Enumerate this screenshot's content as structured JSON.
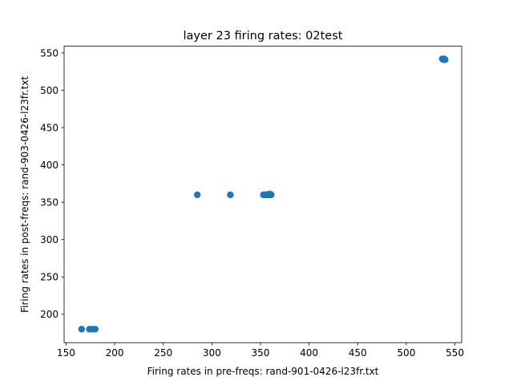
{
  "chart_data": {
    "type": "scatter",
    "title": "layer 23 firing rates: 02test",
    "xlabel": "Firing rates in pre-freqs: rand-901-0426-l23fr.txt",
    "ylabel": "Firing rates in post-freqs: rand-903-0426-l23fr.txt",
    "xlim": [
      148,
      557
    ],
    "ylim": [
      162,
      559
    ],
    "xticks": [
      150,
      200,
      250,
      300,
      350,
      400,
      450,
      500,
      550
    ],
    "yticks": [
      200,
      250,
      300,
      350,
      400,
      450,
      500,
      550
    ],
    "grid": false,
    "marker_color": "#1f77b4",
    "series": [
      {
        "points": [
          [
            166,
            180
          ],
          [
            174,
            180
          ],
          [
            177,
            180
          ],
          [
            180,
            180
          ],
          [
            285,
            360
          ],
          [
            319,
            360
          ],
          [
            353,
            360
          ],
          [
            355,
            360
          ],
          [
            356,
            360
          ],
          [
            357,
            360
          ],
          [
            358,
            360
          ],
          [
            359,
            361
          ],
          [
            359,
            360
          ],
          [
            360,
            360
          ],
          [
            360,
            361
          ],
          [
            361,
            360
          ],
          [
            537,
            542
          ],
          [
            538,
            541
          ],
          [
            539,
            542
          ],
          [
            540,
            541
          ]
        ]
      }
    ]
  }
}
